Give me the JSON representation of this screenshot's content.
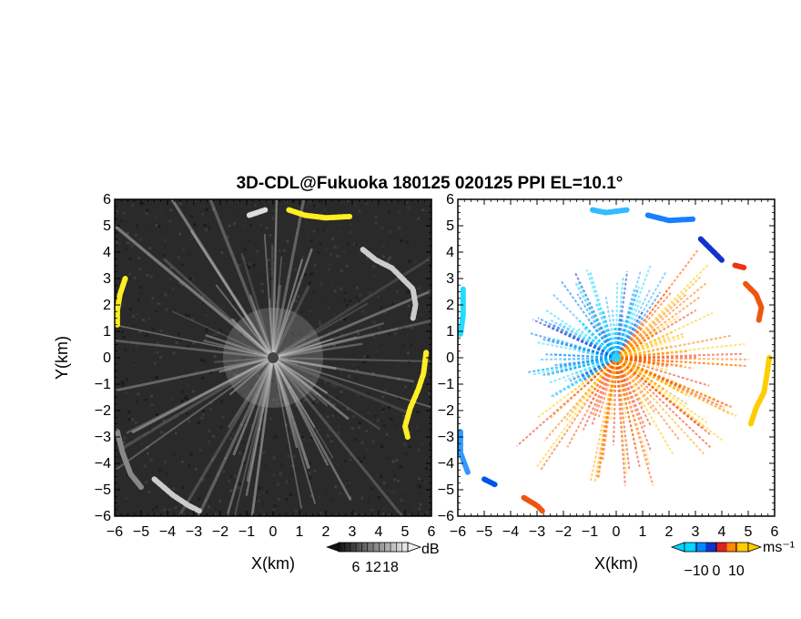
{
  "title": "3D-CDL@Fukuoka 180125 020125 PPI EL=10.1°",
  "chart_data": [
    {
      "type": "heatmap",
      "panel": "reflectivity",
      "xlabel": "X(km)",
      "ylabel": "Y(km)",
      "xlim": [
        -6,
        6
      ],
      "ylim": [
        -6,
        6
      ],
      "xticks": [
        "−6",
        "−5",
        "−4",
        "−3",
        "−2",
        "−1",
        "0",
        "1",
        "2",
        "3",
        "4",
        "5",
        "6"
      ],
      "yticks": [
        "−6",
        "−5",
        "−4",
        "−3",
        "−2",
        "−1",
        "0",
        "1",
        "2",
        "3",
        "4",
        "5",
        "6"
      ],
      "colorbar": {
        "unit": "dB",
        "ticks": [
          "6",
          "12",
          "18"
        ],
        "range": [
          0,
          24
        ]
      },
      "background_color": "#2a2a2a",
      "echo_arcs": [
        {
          "points": [
            [
              0.6,
              5.6
            ],
            [
              1.2,
              5.4
            ],
            [
              2.0,
              5.3
            ],
            [
              2.9,
              5.35
            ]
          ],
          "color": "#ffee22"
        },
        {
          "points": [
            [
              -0.9,
              5.4
            ],
            [
              -0.3,
              5.6
            ]
          ],
          "color": "#dddddd"
        },
        {
          "points": [
            [
              3.4,
              4.1
            ],
            [
              3.9,
              3.7
            ],
            [
              4.5,
              3.4
            ],
            [
              4.9,
              3.0
            ],
            [
              5.3,
              2.6
            ],
            [
              5.4,
              2.0
            ],
            [
              5.3,
              1.5
            ]
          ],
          "color": "#cccccc"
        },
        {
          "points": [
            [
              5.8,
              0.2
            ],
            [
              5.7,
              -0.6
            ],
            [
              5.5,
              -1.2
            ],
            [
              5.2,
              -1.9
            ],
            [
              5.0,
              -2.6
            ],
            [
              5.1,
              -3.0
            ]
          ],
          "color": "#ffee22"
        },
        {
          "points": [
            [
              -5.6,
              3.0
            ],
            [
              -5.8,
              2.4
            ],
            [
              -5.9,
              1.8
            ],
            [
              -5.9,
              1.2
            ]
          ],
          "color": "#ffee22"
        },
        {
          "points": [
            [
              -5.9,
              -2.8
            ],
            [
              -5.7,
              -3.6
            ],
            [
              -5.4,
              -4.4
            ],
            [
              -5.0,
              -4.9
            ]
          ],
          "color": "#888888"
        },
        {
          "points": [
            [
              -4.5,
              -4.6
            ],
            [
              -3.8,
              -5.2
            ],
            [
              -3.2,
              -5.6
            ],
            [
              -2.8,
              -5.8
            ]
          ],
          "color": "#cccccc"
        }
      ],
      "center": [
        0,
        0
      ]
    },
    {
      "type": "heatmap",
      "panel": "doppler_velocity",
      "xlabel": "X(km)",
      "xlim": [
        -6,
        6
      ],
      "ylim": [
        -6,
        6
      ],
      "xticks": [
        "−6",
        "−5",
        "−4",
        "−3",
        "−2",
        "−1",
        "0",
        "1",
        "2",
        "3",
        "4",
        "5",
        "6"
      ],
      "yticks": [
        "−6",
        "−5",
        "−4",
        "−3",
        "−2",
        "−1",
        "0",
        "1",
        "2",
        "3",
        "4",
        "5",
        "6"
      ],
      "colorbar": {
        "unit": "ms⁻¹",
        "ticks": [
          "−10",
          "0",
          "10"
        ],
        "range": [
          -16,
          16
        ],
        "colors": [
          "#00d8ff",
          "#0088ff",
          "#1133cc",
          "#dd2222",
          "#ff8800",
          "#ffcc00"
        ]
      },
      "background_color": "#ffffff",
      "echo_arcs": [
        {
          "points": [
            [
              -0.9,
              5.6
            ],
            [
              -0.4,
              5.5
            ],
            [
              0.4,
              5.6
            ]
          ],
          "color": "#33bbff"
        },
        {
          "points": [
            [
              1.2,
              5.4
            ],
            [
              2.0,
              5.2
            ],
            [
              2.9,
              5.25
            ]
          ],
          "color": "#1a7fff"
        },
        {
          "points": [
            [
              3.2,
              4.5
            ],
            [
              3.6,
              4.1
            ],
            [
              4.0,
              3.7
            ]
          ],
          "color": "#1133cc"
        },
        {
          "points": [
            [
              4.5,
              3.5
            ],
            [
              4.9,
              3.4
            ]
          ],
          "color": "#ee3311"
        },
        {
          "points": [
            [
              4.9,
              2.8
            ],
            [
              5.3,
              2.4
            ],
            [
              5.5,
              1.9
            ],
            [
              5.4,
              1.4
            ]
          ],
          "color": "#ee5511"
        },
        {
          "points": [
            [
              5.8,
              0.0
            ],
            [
              5.7,
              -0.7
            ],
            [
              5.6,
              -1.3
            ],
            [
              5.3,
              -1.9
            ],
            [
              5.1,
              -2.5
            ]
          ],
          "color": "#ffcc00"
        },
        {
          "points": [
            [
              -5.8,
              2.6
            ],
            [
              -5.8,
              1.6
            ],
            [
              -5.9,
              0.9
            ]
          ],
          "color": "#22ddff"
        },
        {
          "points": [
            [
              -5.9,
              -2.8
            ],
            [
              -5.9,
              -3.6
            ],
            [
              -5.6,
              -4.4
            ]
          ],
          "color": "#3399ff"
        },
        {
          "points": [
            [
              -5.0,
              -4.6
            ],
            [
              -4.6,
              -4.8
            ]
          ],
          "color": "#0055ee"
        },
        {
          "points": [
            [
              -3.5,
              -5.3
            ],
            [
              -3.0,
              -5.6
            ],
            [
              -2.8,
              -5.8
            ]
          ],
          "color": "#ee5511"
        }
      ],
      "center": [
        0,
        0
      ]
    }
  ]
}
